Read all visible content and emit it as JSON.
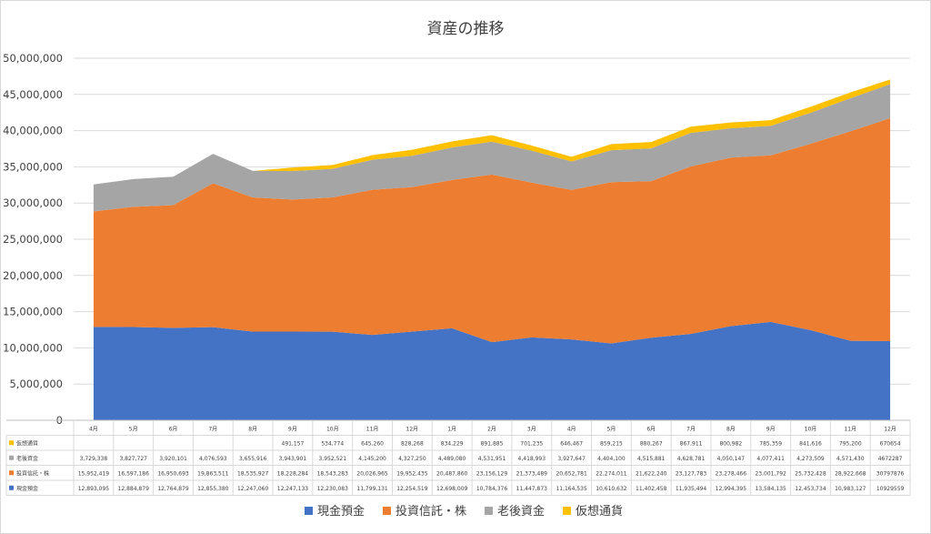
{
  "chart_data": {
    "type": "area",
    "stacked": true,
    "title": "資産の推移",
    "xlabel": "",
    "ylabel": "",
    "ylim": [
      0,
      50000000
    ],
    "yticks": [
      "0",
      "5,000,000",
      "10,000,000",
      "15,000,000",
      "20,000,000",
      "25,000,000",
      "30,000,000",
      "35,000,000",
      "40,000,000",
      "45,000,000",
      "50,000,000"
    ],
    "grid": true,
    "legend_position": "bottom",
    "categories": [
      "4月",
      "5月",
      "6月",
      "7月",
      "8月",
      "9月",
      "10月",
      "11月",
      "12月",
      "1月",
      "2月",
      "3月",
      "4月",
      "5月",
      "6月",
      "7月",
      "8月",
      "9月",
      "10月",
      "11月",
      "12月"
    ],
    "series": [
      {
        "name": "現金預金",
        "color": "#4472c4",
        "values": [
          12893095,
          12884879,
          12764879,
          12855380,
          12247060,
          12247133,
          12230083,
          11799131,
          12254519,
          12698009,
          10784376,
          11447873,
          11164535,
          10610632,
          11402458,
          11935494,
          12994395,
          13584135,
          12453734,
          10983127,
          10929559
        ],
        "labels": [
          "12,893,095",
          "12,884,879",
          "12,764,879",
          "12,855,380",
          "12,247,060",
          "12,247,133",
          "12,230,083",
          "11,799,131",
          "12,254,519",
          "12,698,009",
          "10,784,376",
          "11,447,873",
          "11,164,535",
          "10,610,632",
          "11,402,458",
          "11,935,494",
          "12,994,395",
          "13,584,135",
          "12,453,734",
          "10,983,127",
          "10929559"
        ]
      },
      {
        "name": "投資信託・株",
        "color": "#ed7d31",
        "values": [
          15952419,
          16597186,
          16950693,
          19863511,
          18535927,
          18228284,
          18543283,
          20026965,
          19952435,
          20487860,
          23156129,
          21373489,
          20652781,
          22274011,
          21622240,
          23127783,
          23278466,
          23001792,
          25732428,
          28922668,
          30797876
        ],
        "labels": [
          "15,952,419",
          "16,597,186",
          "16,950,693",
          "19,863,511",
          "18,535,927",
          "18,228,284",
          "18,543,283",
          "20,026,965",
          "19,952,435",
          "20,487,860",
          "23,156,129",
          "21,373,489",
          "20,652,781",
          "22,274,011",
          "21,622,240",
          "23,127,783",
          "23,278,466",
          "23,001,792",
          "25,732,428",
          "28,922,668",
          "30797876"
        ]
      },
      {
        "name": "老後資金",
        "color": "#a5a5a5",
        "values": [
          3729338,
          3827727,
          3920101,
          4076593,
          3655916,
          3943901,
          3952521,
          4145200,
          4327250,
          4489080,
          4531951,
          4418993,
          3927647,
          4404100,
          4515881,
          4628781,
          4050147,
          4077411,
          4273509,
          4571430,
          4672287
        ],
        "labels": [
          "3,729,338",
          "3,827,727",
          "3,920,101",
          "4,076,593",
          "3,655,916",
          "3,943,901",
          "3,952,521",
          "4,145,200",
          "4,327,250",
          "4,489,080",
          "4,531,951",
          "4,418,993",
          "3,927,647",
          "4,404,100",
          "4,515,881",
          "4,628,781",
          "4,050,147",
          "4,077,411",
          "4,273,509",
          "4,571,430",
          "4672287"
        ]
      },
      {
        "name": "仮想通貨",
        "color": "#ffc000",
        "values": [
          0,
          0,
          0,
          0,
          0,
          491157,
          534774,
          645260,
          828268,
          834229,
          891885,
          701235,
          646467,
          859215,
          880267,
          867911,
          800982,
          785359,
          841616,
          795200,
          670654
        ],
        "labels": [
          "",
          "",
          "",
          "",
          "",
          "491,157",
          "534,774",
          "645,260",
          "828,268",
          "834,229",
          "891,885",
          "701,235",
          "646,467",
          "859,215",
          "880,267",
          "867,911",
          "800,982",
          "785,359",
          "841,616",
          "795,200",
          "670654"
        ]
      }
    ]
  }
}
